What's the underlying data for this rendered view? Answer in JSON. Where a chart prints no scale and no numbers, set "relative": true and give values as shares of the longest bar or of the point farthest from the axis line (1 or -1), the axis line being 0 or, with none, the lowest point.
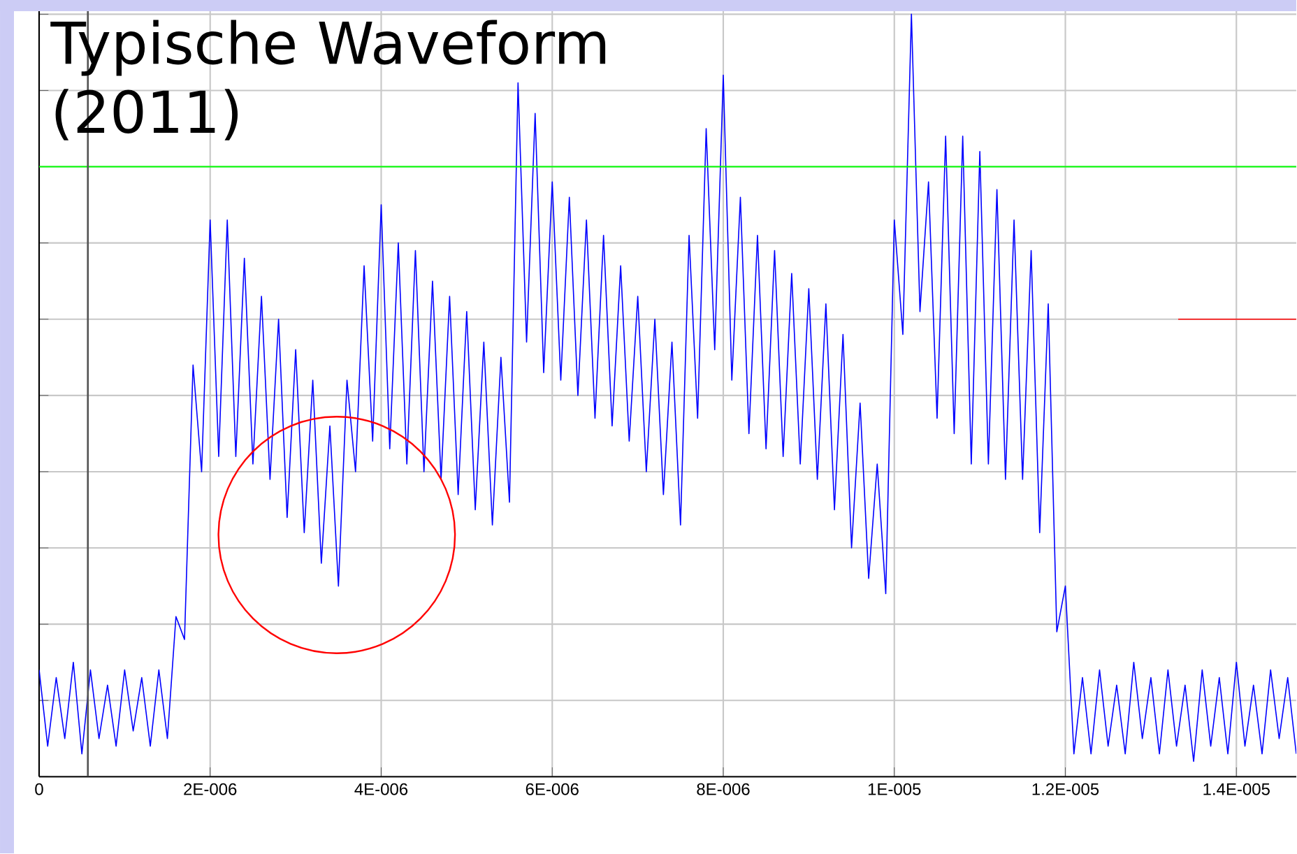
{
  "chart_data": {
    "type": "line",
    "title": "Typische Waveform (2011)",
    "relative": true,
    "grid": true,
    "tick_labels": "x",
    "line_style": "solid",
    "xlim": [
      0,
      1.47e-05
    ],
    "xticks": [
      0,
      {
        "value": 2e-06,
        "label": "2E-006"
      },
      {
        "value": 4e-06,
        "label": "4E-006"
      },
      {
        "value": 6e-06,
        "label": "6E-006"
      },
      {
        "value": 8e-06,
        "label": "8E-006"
      },
      {
        "value": 1e-05,
        "label": "1E-005"
      },
      {
        "value": 1.2e-05,
        "label": "1.2E-005"
      },
      {
        "value": 1.4e-05,
        "label": "1.4E-005"
      }
    ],
    "ref_lines": [
      {
        "axis": "y",
        "value": 0.8,
        "color": "#00ff00"
      },
      {
        "axis": "x",
        "value": 5.7e-07,
        "color": "#555555"
      }
    ],
    "series": [
      {
        "color": "#0000ff",
        "x": [
          0,
          1e-07,
          2e-07,
          3e-07,
          4e-07,
          5e-07,
          6e-07,
          7e-07,
          8e-07,
          9e-07,
          1e-06,
          1.1e-06,
          1.2e-06,
          1.3e-06,
          1.4e-06,
          1.5e-06,
          1.6e-06,
          1.7e-06,
          1.8e-06,
          1.9e-06,
          2e-06,
          2.1e-06,
          2.2e-06,
          2.3e-06,
          2.4e-06,
          2.5e-06,
          2.6e-06,
          2.7e-06,
          2.8e-06,
          2.9e-06,
          3e-06,
          3.1e-06,
          3.2e-06,
          3.3e-06,
          3.4e-06,
          3.5e-06,
          3.6e-06,
          3.7e-06,
          3.8e-06,
          3.9e-06,
          4e-06,
          4.1e-06,
          4.2e-06,
          4.3e-06,
          4.4e-06,
          4.5e-06,
          4.6e-06,
          4.7e-06,
          4.8e-06,
          4.9e-06,
          5e-06,
          5.1e-06,
          5.2e-06,
          5.3e-06,
          5.4e-06,
          5.5e-06,
          5.6e-06,
          5.7e-06,
          5.8e-06,
          5.9e-06,
          6e-06,
          6.1e-06,
          6.2e-06,
          6.3e-06,
          6.4e-06,
          6.5e-06,
          6.6e-06,
          6.7e-06,
          6.8e-06,
          6.9e-06,
          7e-06,
          7.1e-06,
          7.2e-06,
          7.3e-06,
          7.4e-06,
          7.5e-06,
          7.6e-06,
          7.7e-06,
          7.8e-06,
          7.9e-06,
          8e-06,
          8.1e-06,
          8.2e-06,
          8.3e-06,
          8.4e-06,
          8.5e-06,
          8.6e-06,
          8.7e-06,
          8.8e-06,
          8.9e-06,
          9e-06,
          9.1e-06,
          9.2e-06,
          9.3e-06,
          9.4e-06,
          9.5e-06,
          9.6e-06,
          9.7e-06,
          9.8e-06,
          9.9e-06,
          1e-05,
          1.01e-05,
          1.02e-05,
          1.03e-05,
          1.04e-05,
          1.05e-05,
          1.06e-05,
          1.07e-05,
          1.08e-05,
          1.09e-05,
          1.1e-05,
          1.11e-05,
          1.12e-05,
          1.13e-05,
          1.14e-05,
          1.15e-05,
          1.16e-05,
          1.17e-05,
          1.18e-05,
          1.19e-05,
          1.2e-05,
          1.21e-05,
          1.22e-05,
          1.23e-05,
          1.24e-05,
          1.25e-05,
          1.26e-05,
          1.27e-05,
          1.28e-05,
          1.29e-05,
          1.3e-05,
          1.31e-05,
          1.32e-05,
          1.33e-05,
          1.34e-05,
          1.35e-05,
          1.36e-05,
          1.37e-05,
          1.38e-05,
          1.39e-05,
          1.4e-05,
          1.41e-05,
          1.42e-05,
          1.43e-05,
          1.44e-05,
          1.45e-05,
          1.46e-05,
          1.47e-05
        ],
        "values": [
          0.14,
          0.04,
          0.13,
          0.05,
          0.15,
          0.03,
          0.14,
          0.05,
          0.12,
          0.04,
          0.14,
          0.06,
          0.13,
          0.04,
          0.14,
          0.05,
          0.21,
          0.18,
          0.54,
          0.4,
          0.73,
          0.42,
          0.73,
          0.42,
          0.68,
          0.41,
          0.63,
          0.39,
          0.6,
          0.34,
          0.56,
          0.32,
          0.52,
          0.28,
          0.46,
          0.25,
          0.52,
          0.4,
          0.67,
          0.44,
          0.75,
          0.43,
          0.7,
          0.41,
          0.69,
          0.4,
          0.65,
          0.39,
          0.63,
          0.37,
          0.61,
          0.35,
          0.57,
          0.33,
          0.55,
          0.36,
          0.91,
          0.57,
          0.87,
          0.53,
          0.78,
          0.52,
          0.76,
          0.5,
          0.73,
          0.47,
          0.71,
          0.46,
          0.67,
          0.44,
          0.63,
          0.4,
          0.6,
          0.37,
          0.57,
          0.33,
          0.71,
          0.47,
          0.85,
          0.56,
          0.92,
          0.52,
          0.76,
          0.45,
          0.71,
          0.43,
          0.69,
          0.42,
          0.66,
          0.41,
          0.64,
          0.39,
          0.62,
          0.35,
          0.58,
          0.3,
          0.49,
          0.26,
          0.41,
          0.24,
          0.73,
          0.58,
          1.0,
          0.61,
          0.78,
          0.47,
          0.84,
          0.45,
          0.84,
          0.41,
          0.82,
          0.41,
          0.77,
          0.39,
          0.73,
          0.39,
          0.69,
          0.32,
          0.62,
          0.19,
          0.25,
          0.03,
          0.13,
          0.03,
          0.14,
          0.04,
          0.12,
          0.03,
          0.15,
          0.05,
          0.13,
          0.03,
          0.14,
          0.04,
          0.12,
          0.02,
          0.14,
          0.04,
          0.13,
          0.03,
          0.15,
          0.04,
          0.12,
          0.03,
          0.14,
          0.05,
          0.13,
          0.03
        ]
      },
      {
        "color": "#ff0000",
        "x": [
          1.332e-05,
          1.47e-05
        ],
        "values": [
          0.6,
          0.6
        ]
      }
    ]
  }
}
